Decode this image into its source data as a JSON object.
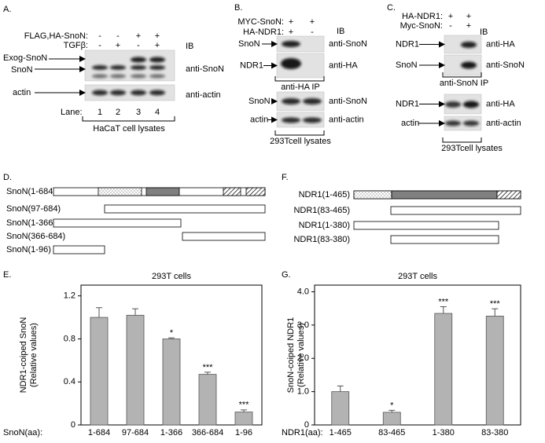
{
  "panel_a": {
    "label": "A.",
    "treatments": [
      {
        "label": "FLAG,HA-SnoN:",
        "signs": [
          "-",
          "-",
          "+",
          "+"
        ]
      },
      {
        "label": "TGFβ:",
        "signs": [
          "-",
          "+",
          "-",
          "+"
        ]
      }
    ],
    "ib": "IB",
    "bands": [
      "Exog-SnoN",
      "SnoN",
      "actin"
    ],
    "antibodies": [
      "anti-SnoN",
      "anti-actin"
    ],
    "lane_label": "Lane:",
    "lanes": [
      "1",
      "2",
      "3",
      "4"
    ],
    "lysate": "HaCaT cell lysates"
  },
  "panel_b": {
    "label": "B.",
    "treatments": [
      {
        "label": "MYC-SnoN:",
        "signs": [
          "+",
          "+"
        ]
      },
      {
        "label": "HA-NDR1:",
        "signs": [
          "+",
          "-"
        ]
      }
    ],
    "ib": "IB",
    "ip_blots": {
      "bands": [
        "SnoN",
        "NDR1"
      ],
      "antibodies": [
        "anti-SnoN",
        "anti-HA"
      ],
      "caption": "anti-HA IP"
    },
    "lysate_blots": {
      "bands": [
        "SnoN",
        "actin"
      ],
      "antibodies": [
        "anti-SnoN",
        "anti-actin"
      ],
      "caption": "293Tcell lysates"
    }
  },
  "panel_c": {
    "label": "C.",
    "treatments": [
      {
        "label": "HA-NDR1:",
        "signs": [
          "+",
          "+"
        ]
      },
      {
        "label": "Myc-SnoN:",
        "signs": [
          "-",
          "+"
        ]
      }
    ],
    "ib": "IB",
    "ip_blots": {
      "bands": [
        "NDR1",
        "SnoN"
      ],
      "antibodies": [
        "anti-HA",
        "anti-SnoN"
      ],
      "caption": "anti-SnoN IP"
    },
    "lysate_blots": {
      "bands": [
        "NDR1",
        "actin"
      ],
      "antibodies": [
        "anti-HA",
        "anti-actin"
      ],
      "caption": "293Tcell lysates"
    }
  },
  "panel_d": {
    "label": "D.",
    "constructs": [
      "SnoN(1-684)",
      "SnoN(97-684)",
      "SnoN(1-366)",
      "SnoN(366-684)",
      "SnoN(1-96)"
    ]
  },
  "panel_f": {
    "label": "F.",
    "constructs": [
      "NDR1(1-465)",
      "NDR1(83-465)",
      "NDR1(1-380)",
      "NDR1(83-380)"
    ]
  },
  "chart_data": [
    {
      "type": "bar",
      "panel": "E.",
      "title": "293T cells",
      "y_label": [
        "NDR1-coiped SnoN",
        "(Relative values)"
      ],
      "x_label": "SnoN(aa):",
      "categories": [
        "1-684",
        "97-684",
        "1-366",
        "366-684",
        "1-96"
      ],
      "values": [
        1.0,
        1.02,
        0.8,
        0.47,
        0.12
      ],
      "errors": [
        0.09,
        0.06,
        0.01,
        0.02,
        0.02
      ],
      "significance": [
        null,
        null,
        "*",
        "***",
        "***"
      ],
      "color": "#b3b3b3",
      "ylim": [
        0,
        1.3
      ],
      "yticks": [
        0,
        0.4,
        0.8,
        1.2
      ]
    },
    {
      "type": "bar",
      "panel": "G.",
      "title": "293T cells",
      "y_label": [
        "SnoN-coiped NDR1",
        "(Relative values)"
      ],
      "x_label": "NDR1(aa):",
      "categories": [
        "1-465",
        "83-465",
        "1-380",
        "83-380"
      ],
      "values": [
        1.0,
        0.38,
        3.35,
        3.27
      ],
      "errors": [
        0.17,
        0.06,
        0.2,
        0.22
      ],
      "significance": [
        null,
        "*",
        "***",
        "***"
      ],
      "color": "#b3b3b3",
      "ylim": [
        0,
        4.2
      ],
      "yticks": [
        0,
        {
          "value": 1,
          "label": "1.0"
        },
        {
          "value": 2,
          "label": "2.0"
        },
        {
          "value": 3,
          "label": "3.0"
        },
        {
          "value": 4,
          "label": "4.0"
        }
      ]
    }
  ]
}
